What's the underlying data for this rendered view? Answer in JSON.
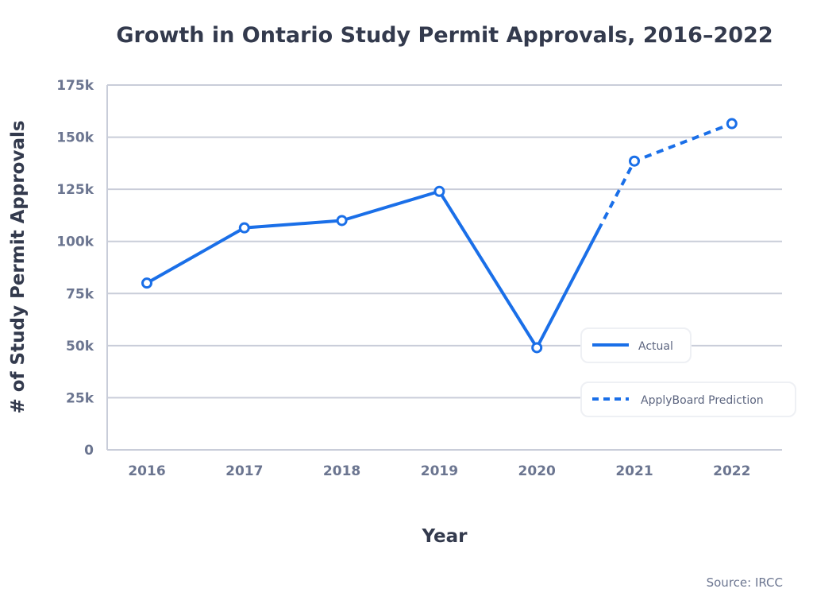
{
  "chart_data": {
    "type": "line",
    "title": "Growth in Ontario Study Permit Approvals, 2016–2022",
    "xlabel": "Year",
    "ylabel": "# of Study Permit Approvals",
    "source": "Source: IRCC",
    "categories": [
      "2016",
      "2017",
      "2018",
      "2019",
      "2020",
      "2021",
      "2022"
    ],
    "values": [
      80000,
      106500,
      110000,
      124000,
      49000,
      138500,
      156500
    ],
    "actual_through": "2020",
    "ylim": [
      0,
      175000
    ],
    "yticks": [
      0,
      25000,
      50000,
      75000,
      100000,
      125000,
      150000,
      175000
    ],
    "ytick_labels": [
      "0",
      "25k",
      "50k",
      "75k",
      "100k",
      "125k",
      "150k",
      "175k"
    ],
    "grid": true,
    "legend": {
      "placement": "bottom-right",
      "entries": [
        {
          "label": "Actual",
          "style": "solid"
        },
        {
          "label": "ApplyBoard Prediction",
          "style": "dashed"
        }
      ]
    },
    "colors": {
      "line": "#1a6fe8",
      "grid": "#c9cdd9",
      "text": "#333a4d",
      "tick": "#6b7590"
    }
  }
}
